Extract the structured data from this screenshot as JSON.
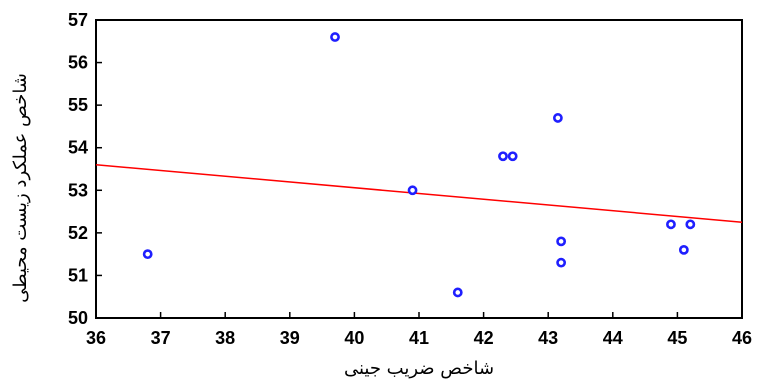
{
  "chart_data": {
    "type": "scatter",
    "xlabel": "شاخص ضريب جينى",
    "ylabel": "شاخص عملکرد زيست محيطى",
    "xlim": [
      36,
      46
    ],
    "ylim": [
      50,
      57
    ],
    "xticks": [
      36,
      37,
      38,
      39,
      40,
      41,
      42,
      43,
      44,
      45,
      46
    ],
    "yticks": [
      50,
      51,
      52,
      53,
      54,
      55,
      56,
      57
    ],
    "grid": false,
    "series": [
      {
        "marker_color": "#1f1fff",
        "points": [
          {
            "x": 36.8,
            "y": 51.5
          },
          {
            "x": 39.7,
            "y": 56.6
          },
          {
            "x": 40.9,
            "y": 53.0
          },
          {
            "x": 41.6,
            "y": 50.6
          },
          {
            "x": 42.3,
            "y": 53.8
          },
          {
            "x": 42.45,
            "y": 53.8
          },
          {
            "x": 43.15,
            "y": 54.7
          },
          {
            "x": 43.2,
            "y": 51.8
          },
          {
            "x": 43.2,
            "y": 51.3
          },
          {
            "x": 44.9,
            "y": 52.2
          },
          {
            "x": 45.1,
            "y": 51.6
          },
          {
            "x": 45.2,
            "y": 52.2
          }
        ]
      }
    ],
    "trendline": {
      "color": "#ff0000",
      "points": [
        {
          "x": 36,
          "y": 53.6
        },
        {
          "x": 46,
          "y": 52.25
        }
      ]
    }
  }
}
